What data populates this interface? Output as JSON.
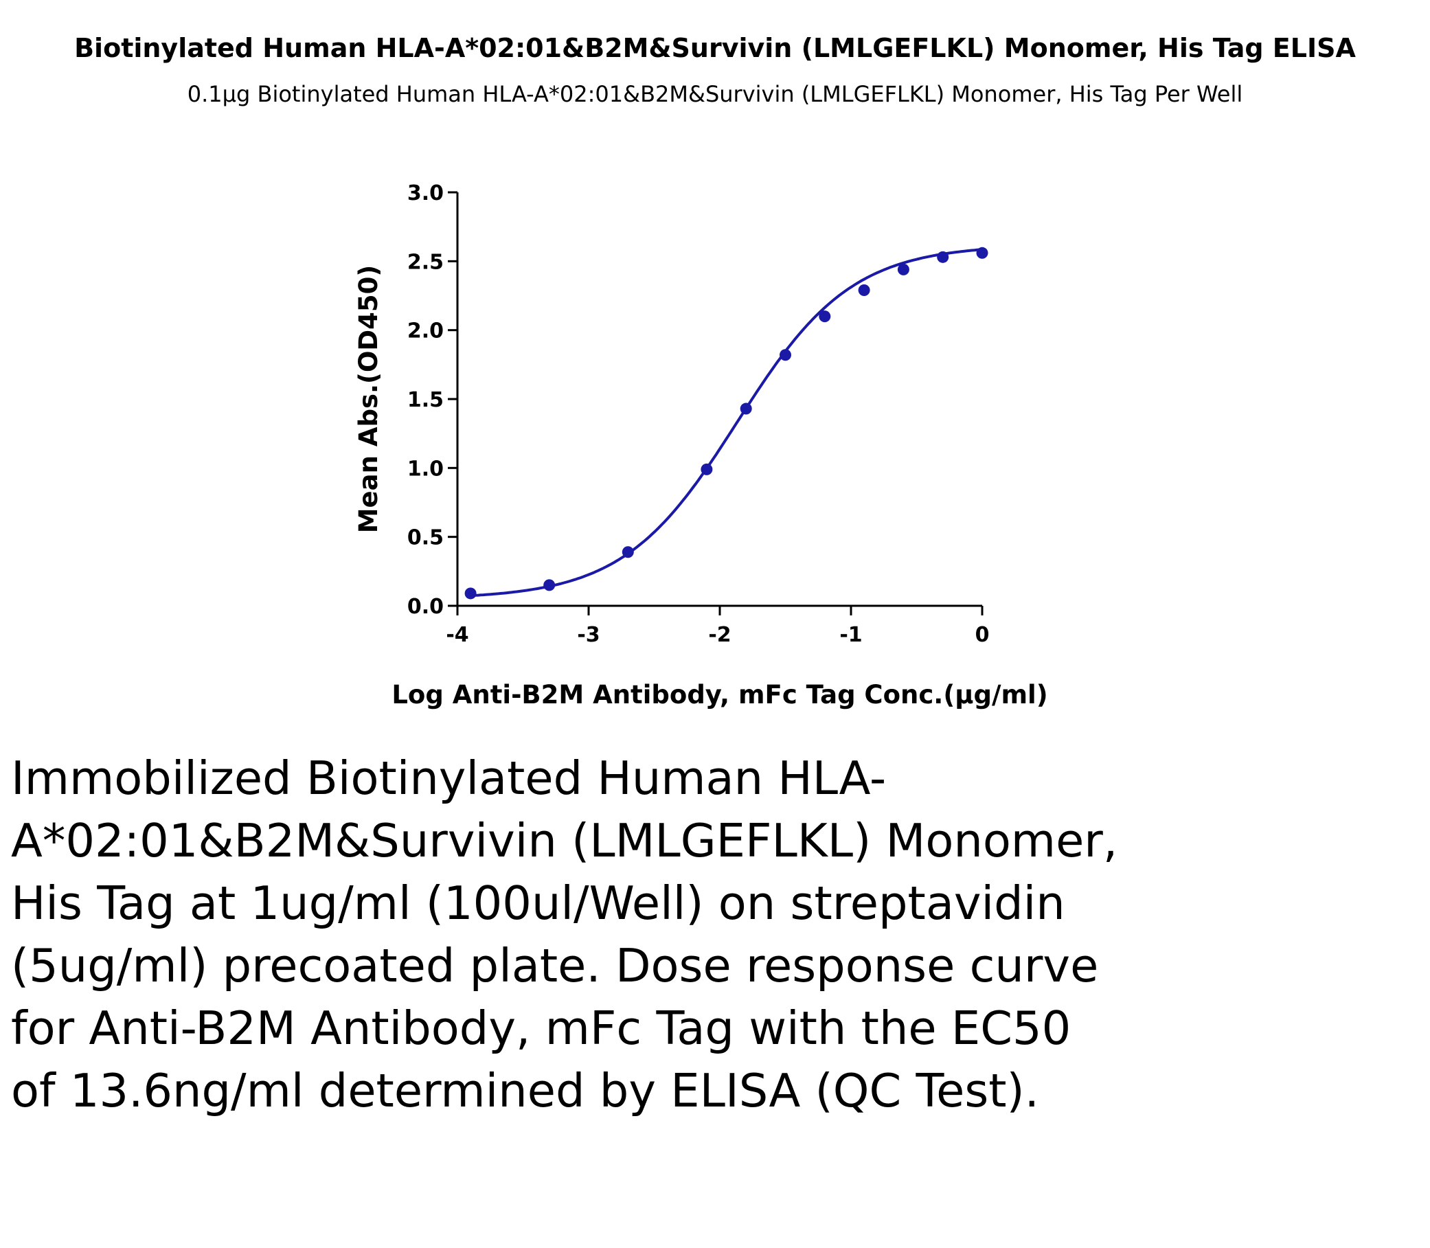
{
  "chart_data": {
    "type": "scatter",
    "title": "Biotinylated Human HLA-A*02:01&B2M&Survivin (LMLGEFLKL) Monomer, His Tag ELISA",
    "subtitle": "0.1µg Biotinylated Human HLA-A*02:01&B2M&Survivin (LMLGEFLKL) Monomer, His Tag Per Well",
    "xlabel": "Log Anti-B2M Antibody, mFc Tag Conc.(µg/ml)",
    "ylabel": "Mean Abs.(OD450)",
    "xlim": [
      -4,
      0
    ],
    "ylim": [
      0,
      3.0
    ],
    "xticks": [
      "-4",
      "-3",
      "-2",
      "-1",
      "0"
    ],
    "yticks": [
      "0.0",
      "0.5",
      "1.0",
      "1.5",
      "2.0",
      "2.5",
      "3.0"
    ],
    "grid": false,
    "series": [
      {
        "color": "#1a1aa6",
        "x": [
          -3.9,
          -3.3,
          -2.7,
          -2.1,
          -1.8,
          -1.5,
          -1.2,
          -0.9,
          -0.6,
          -0.3,
          0.0
        ],
        "y": [
          0.09,
          0.15,
          0.39,
          0.99,
          1.43,
          1.82,
          2.1,
          2.29,
          2.44,
          2.53,
          2.56
        ]
      }
    ],
    "fit_curve": {
      "type": "4PL",
      "bottom": 0.05,
      "top": 2.62,
      "log_ec50": -1.866,
      "hill": 1.0
    }
  },
  "description": "Immobilized Biotinylated Human HLA-A*02:01&B2M&Survivin (LMLGEFLKL) Monomer, His Tag at 1ug/ml (100ul/Well) on streptavidin (5ug/ml) precoated plate. Dose response curve for Anti-B2M Antibody, mFc Tag with the EC50 of 13.6ng/ml determined by ELISA (QC Test)."
}
